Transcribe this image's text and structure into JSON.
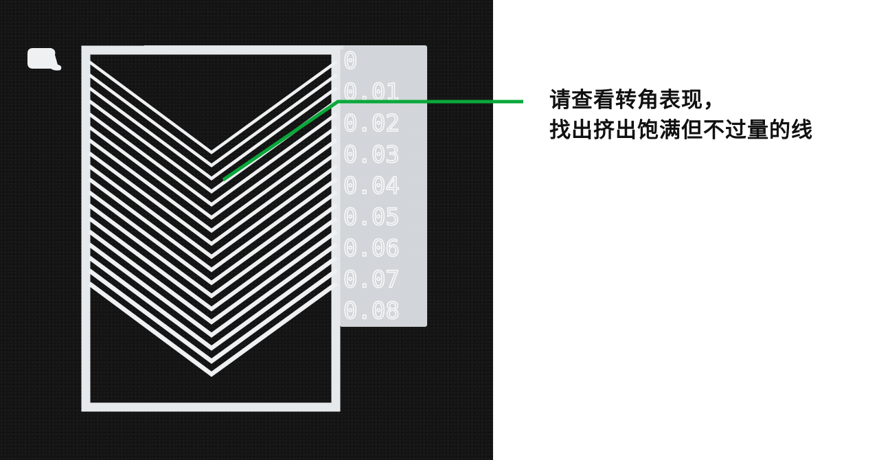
{
  "caption": {
    "line1": "请查看转角表现，",
    "line2": "找出挤出饱满但不过量的线"
  },
  "scale_labels": [
    "0",
    "0.01",
    "0.02",
    "0.03",
    "0.04",
    "0.05",
    "0.06",
    "0.07",
    "0.08"
  ],
  "colors": {
    "background": "#141414",
    "filament": "#eef0f2",
    "label_panel": "#e3e6ea",
    "label_text": "#f8f9fa",
    "callout_line": "#0aa83a",
    "caption_text": "#111111"
  }
}
